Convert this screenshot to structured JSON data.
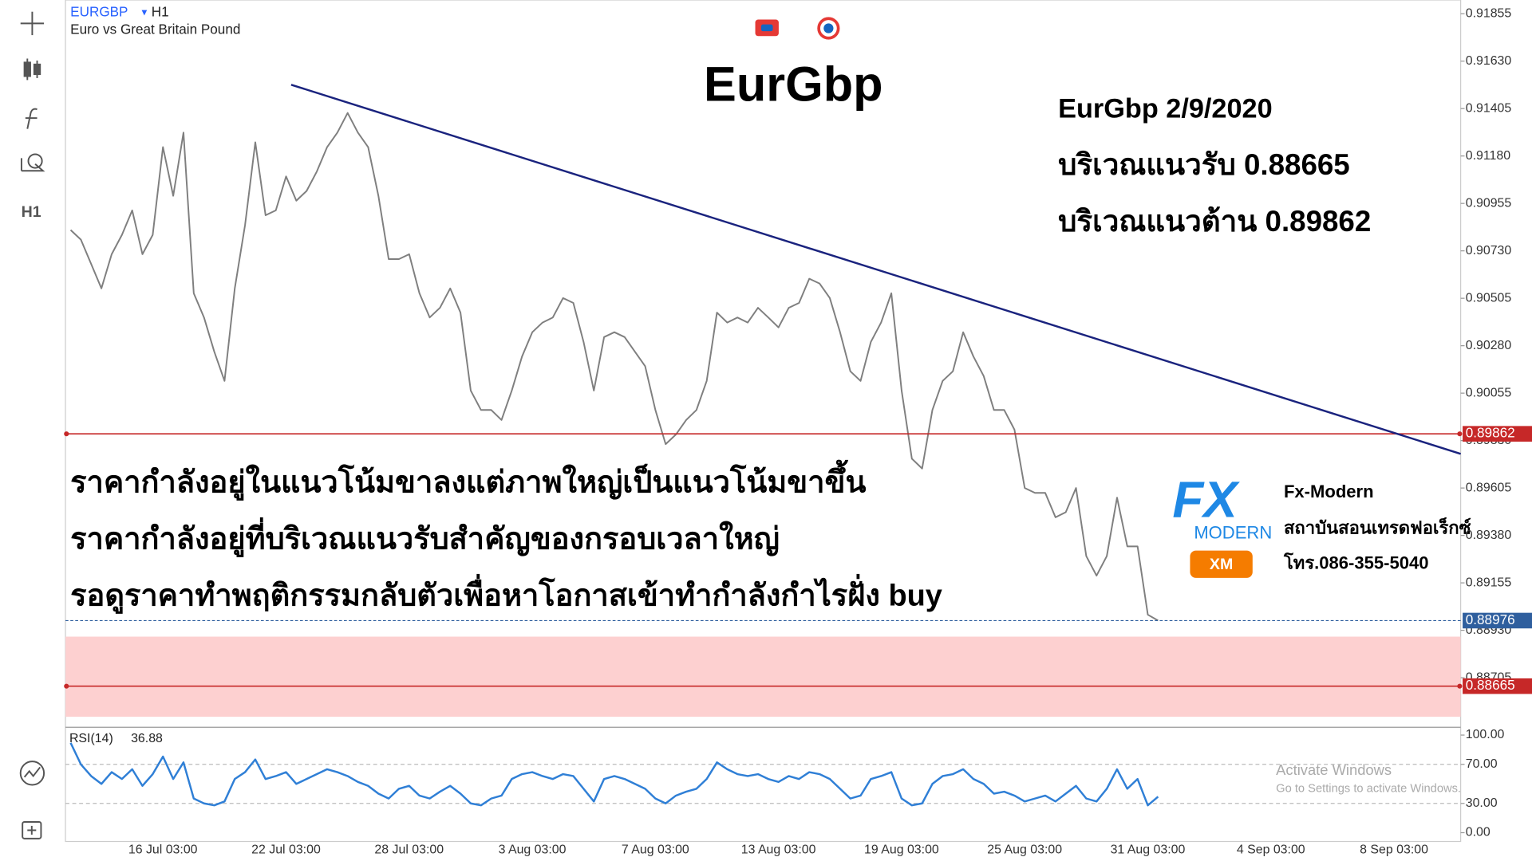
{
  "header": {
    "description": "Euro vs Great Britain Pound"
  },
  "toolbar": {
    "timeframe": "H1"
  },
  "chart_data": [
    {
      "type": "line",
      "title": "EurGbp",
      "timeframe": "H1",
      "annotations": [
        "EurGbp 2/9/2020",
        "บริเวณแนวรับ 0.88665",
        "บริเวณแนวต้าน 0.89862"
      ],
      "notes": [
        "ราคากำลังอยู่ในแนวโน้มขาลงแต่ภาพใหญ่เป็นแนวโน้มขาขึ้น",
        "ราคากำลังอยู่ที่บริเวณแนวรับสำคัญของกรอบเวลาใหญ่",
        "รอดูราคาทำพฤติกรรมกลับตัวเพื่อหาโอกาสเข้าทำกำลังกำไรฝั่ง buy"
      ],
      "categories": [
        null,
        null,
        null,
        null,
        null,
        null,
        null,
        null,
        null,
        "16 Jul 03:00",
        null,
        null,
        null,
        null,
        null,
        null,
        null,
        null,
        null,
        null,
        null,
        "22 Jul 03:00",
        null,
        null,
        null,
        null,
        null,
        null,
        null,
        null,
        null,
        null,
        null,
        "28 Jul 03:00",
        null,
        null,
        null,
        null,
        null,
        null,
        null,
        null,
        null,
        null,
        null,
        "3 Aug 03:00",
        null,
        null,
        null,
        null,
        null,
        null,
        null,
        null,
        null,
        null,
        null,
        "7 Aug 03:00",
        null,
        null,
        null,
        null,
        null,
        null,
        null,
        null,
        null,
        null,
        null,
        "13 Aug 03:00",
        null,
        null,
        null,
        null,
        null,
        null,
        null,
        null,
        null,
        null,
        null,
        "19 Aug 03:00",
        null,
        null,
        null,
        null,
        null,
        null,
        null,
        null,
        null,
        null,
        null,
        "25 Aug 03:00",
        null,
        null,
        null,
        null,
        null,
        null,
        null,
        null,
        null,
        null,
        null,
        "31 Aug 03:00",
        null,
        null,
        null,
        null,
        null,
        null,
        null,
        null,
        null,
        null,
        null,
        "4 Sep 03:00",
        null,
        null,
        null,
        null,
        null,
        null,
        null,
        null,
        null,
        null,
        null,
        "8 Sep 03:00",
        null,
        null,
        null,
        null,
        null,
        null
      ],
      "series": [
        {
          "name": "EURGBP",
          "color": "#7f7f7f",
          "values": [
            0.90829,
            0.90783,
            0.90668,
            0.90552,
            0.90714,
            0.90806,
            0.90922,
            0.90714,
            0.90806,
            0.91222,
            0.90991,
            0.91291,
            0.90529,
            0.90414,
            0.90252,
            0.90113,
            0.90552,
            0.90852,
            0.91245,
            0.90899,
            0.90922,
            0.91083,
            0.90968,
            0.91014,
            0.91107,
            0.91222,
            0.91291,
            0.91384,
            0.91291,
            0.91222,
            0.90991,
            0.90691,
            0.90691,
            0.90714,
            0.90529,
            0.90414,
            0.9046,
            0.90552,
            0.90437,
            0.90067,
            0.89975,
            0.89975,
            0.89928,
            0.90067,
            0.90229,
            0.90344,
            0.9039,
            0.90414,
            0.90506,
            0.90483,
            0.90298,
            0.90067,
            0.90321,
            0.90344,
            0.90321,
            0.90252,
            0.90183,
            0.89975,
            0.89813,
            0.89859,
            0.89928,
            0.89975,
            0.90113,
            0.90437,
            0.9039,
            0.90414,
            0.9039,
            0.9046,
            0.90414,
            0.90367,
            0.9046,
            0.90483,
            0.90598,
            0.90575,
            0.90506,
            0.90344,
            0.90159,
            0.90113,
            0.90298,
            0.9039,
            0.90529,
            0.90067,
            0.89744,
            0.89697,
            0.89975,
            0.90113,
            0.90159,
            0.90344,
            0.90229,
            0.90136,
            0.89975,
            0.89975,
            0.89882,
            0.89605,
            0.89582,
            0.89582,
            0.89466,
            0.8949,
            0.89605,
            0.89282,
            0.89189,
            0.89282,
            0.89559,
            0.89328,
            0.89328,
            0.89004,
            0.88976,
            null,
            null,
            null,
            null,
            null,
            null,
            null,
            null,
            null,
            null,
            null,
            null,
            null,
            null,
            null,
            null,
            null,
            null,
            null,
            null,
            null,
            null,
            null,
            null,
            null,
            null,
            null,
            null,
            null
          ]
        }
      ],
      "ylim": [
        0.8847,
        0.9192
      ],
      "yticks": [
        0.91855,
        {
          "value": 0.9163,
          "label": "0.91630"
        },
        0.91405,
        {
          "value": 0.9118,
          "label": "0.91180"
        },
        0.90955,
        {
          "value": 0.9073,
          "label": "0.90730"
        },
        0.90505,
        {
          "value": 0.9028,
          "label": "0.90280"
        },
        0.90055,
        {
          "value": 0.8983,
          "label": "0.89830"
        },
        0.89605,
        {
          "value": 0.8938,
          "label": "0.89380"
        },
        0.89155,
        {
          "value": 0.8893,
          "label": "0.88930"
        },
        0.88705
      ],
      "levels": [
        {
          "value": 0.89862,
          "color": "#c62828",
          "style": "solid"
        },
        {
          "value": 0.88665,
          "color": "#c62828",
          "style": "solid"
        },
        {
          "value": 0.88976,
          "color": "#2f5f9e",
          "style": "dashed"
        }
      ],
      "zone": [
        0.8852,
        0.889
      ],
      "zone_color": "#fdd0d0",
      "trendline": {
        "x": [
          21.5,
          135.5
        ],
        "y": [
          0.91518,
          0.89767
        ],
        "color": "#1a237e"
      }
    },
    {
      "type": "line",
      "title": "RSI(14)",
      "series": [
        {
          "name": "RSI",
          "color": "#2f7fd6",
          "values": [
            92,
            70,
            58,
            50,
            62,
            55,
            65,
            48,
            60,
            78,
            55,
            72,
            35,
            30,
            28,
            32,
            55,
            62,
            75,
            55,
            58,
            62,
            50,
            55,
            60,
            65,
            62,
            58,
            52,
            48,
            40,
            35,
            45,
            48,
            38,
            35,
            42,
            48,
            40,
            30,
            28,
            35,
            38,
            55,
            60,
            62,
            58,
            55,
            60,
            58,
            45,
            32,
            55,
            58,
            55,
            50,
            45,
            35,
            30,
            38,
            42,
            45,
            55,
            72,
            65,
            60,
            58,
            60,
            55,
            52,
            58,
            55,
            62,
            60,
            55,
            45,
            35,
            38,
            55,
            58,
            62,
            35,
            28,
            30,
            50,
            58,
            60,
            65,
            55,
            50,
            40,
            42,
            38,
            32,
            35,
            38,
            32,
            40,
            48,
            35,
            32,
            45,
            65,
            45,
            55,
            28,
            36.88,
            null,
            null,
            null,
            null,
            null,
            null,
            null,
            null,
            null,
            null,
            null,
            null,
            null,
            null,
            null,
            null,
            null,
            null,
            null,
            null,
            null,
            null,
            null,
            null,
            null,
            null,
            null,
            null,
            null
          ]
        }
      ],
      "ylim": [
        0,
        100
      ],
      "yticks": [
        {
          "value": 100,
          "label": "100.00"
        },
        {
          "value": 70,
          "label": "70.00"
        },
        {
          "value": 30,
          "label": "30.00"
        },
        {
          "value": 0,
          "label": "0.00"
        }
      ],
      "levels": [
        70,
        30
      ]
    }
  ],
  "logo": {
    "mark": "FX",
    "brand": "MODERN",
    "partner": "XM",
    "name": "Fx-Modern",
    "tagline": "สถาบันสอนเทรดฟอเร็กซ์",
    "phone": "โทร.086-355-5040"
  },
  "watermark": {
    "title": "Activate Windows",
    "subtitle": "Go to Settings to activate Windows."
  }
}
